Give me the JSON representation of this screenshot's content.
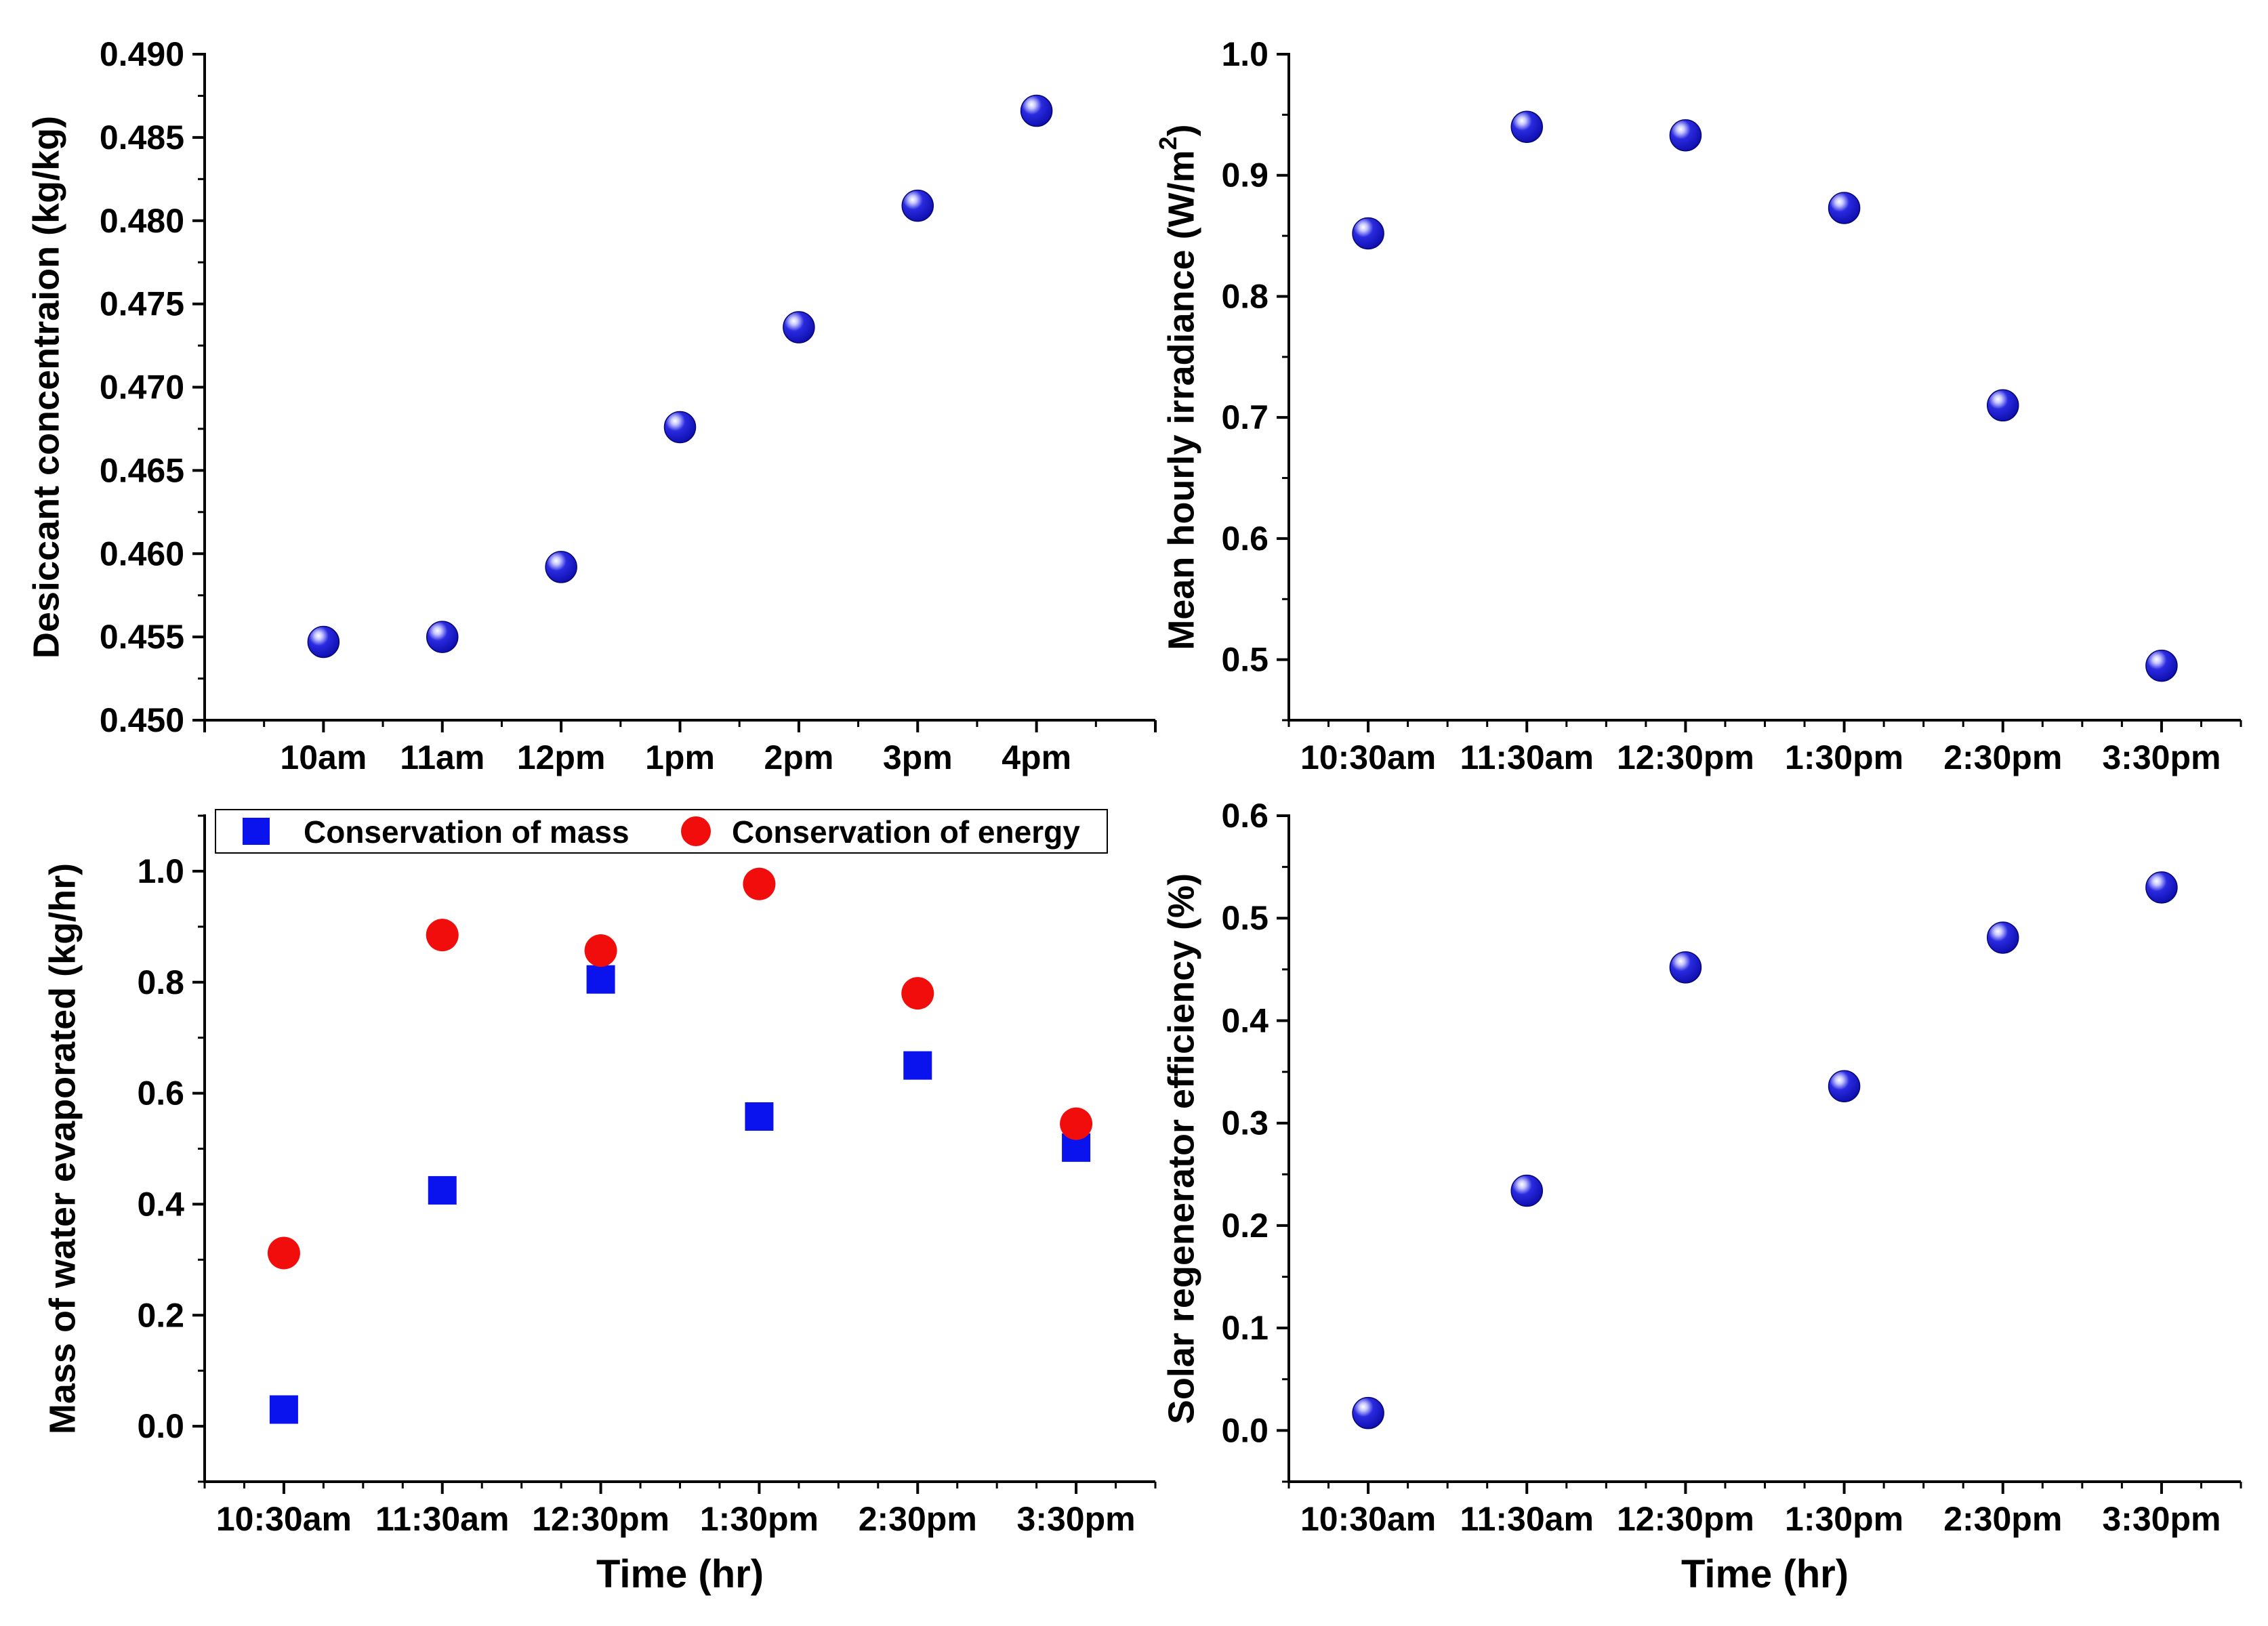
{
  "colors": {
    "sphere_dark": "#0b0ba8",
    "sphere_mid": "#2a2ae0",
    "sphere_light": "#ffffff",
    "mass_blue": "#0a12ee",
    "energy_red": "#f20d0d",
    "axis": "#000000"
  },
  "chart_data": [
    {
      "id": "desiccant",
      "type": "scatter",
      "title": "",
      "xlabel": "",
      "ylabel": "Desiccant concentraion (kg/kg)",
      "categories": [
        "10am",
        "11am",
        "12pm",
        "1pm",
        "2pm",
        "3pm",
        "4pm"
      ],
      "ylim": [
        0.45,
        0.49
      ],
      "yticks": [
        "0.450",
        "0.455",
        "0.460",
        "0.465",
        "0.470",
        "0.475",
        "0.480",
        "0.485",
        "0.490"
      ],
      "series": [
        {
          "name": "Desiccant concentration",
          "marker": "sphere",
          "values": [
            0.4547,
            0.455,
            0.4592,
            0.4676,
            0.4736,
            0.4809,
            0.4866
          ]
        }
      ]
    },
    {
      "id": "irradiance",
      "type": "scatter",
      "title": "",
      "xlabel": "",
      "ylabel": "Mean hourly irradiance (W/m",
      "ylabel_sup": "2",
      "ylabel_end": ")",
      "categories": [
        "10:30am",
        "11:30am",
        "12:30pm",
        "1:30pm",
        "2:30pm",
        "3:30pm"
      ],
      "ylim": [
        0.45,
        1.0
      ],
      "yticks": [
        "0.5",
        "0.6",
        "0.7",
        "0.8",
        "0.9",
        "1.0"
      ],
      "series": [
        {
          "name": "Mean hourly irradiance",
          "marker": "sphere",
          "values": [
            0.852,
            0.94,
            0.933,
            0.873,
            0.71,
            0.495
          ]
        }
      ]
    },
    {
      "id": "mass",
      "type": "scatter",
      "title": "",
      "xlabel": "Time (hr)",
      "ylabel": "Mass of water evaporated (kg/hr)",
      "categories": [
        "10:30am",
        "11:30am",
        "12:30pm",
        "1:30pm",
        "2:30pm",
        "3:30pm"
      ],
      "ylim": [
        -0.1,
        1.1
      ],
      "yticks": [
        "0.0",
        "0.2",
        "0.4",
        "0.6",
        "0.8",
        "1.0"
      ],
      "legend_position": "top",
      "series": [
        {
          "name": "Conservation of mass",
          "marker": "square",
          "values": [
            0.03,
            0.425,
            0.805,
            0.558,
            0.65,
            0.502
          ]
        },
        {
          "name": "Conservation of energy",
          "marker": "circle",
          "values": [
            0.312,
            0.885,
            0.857,
            0.977,
            0.78,
            0.545
          ]
        }
      ]
    },
    {
      "id": "efficiency",
      "type": "scatter",
      "title": "",
      "xlabel": "Time (hr)",
      "ylabel": "Solar regenerator efficiency (%)",
      "categories": [
        "10:30am",
        "11:30am",
        "12:30pm",
        "1:30pm",
        "2:30pm",
        "3:30pm"
      ],
      "ylim": [
        -0.05,
        0.6
      ],
      "yticks": [
        "0.0",
        "0.1",
        "0.2",
        "0.3",
        "0.4",
        "0.5",
        "0.6"
      ],
      "series": [
        {
          "name": "Solar regenerator efficiency",
          "marker": "sphere",
          "values": [
            0.017,
            0.234,
            0.452,
            0.336,
            0.481,
            0.53
          ]
        }
      ]
    }
  ]
}
